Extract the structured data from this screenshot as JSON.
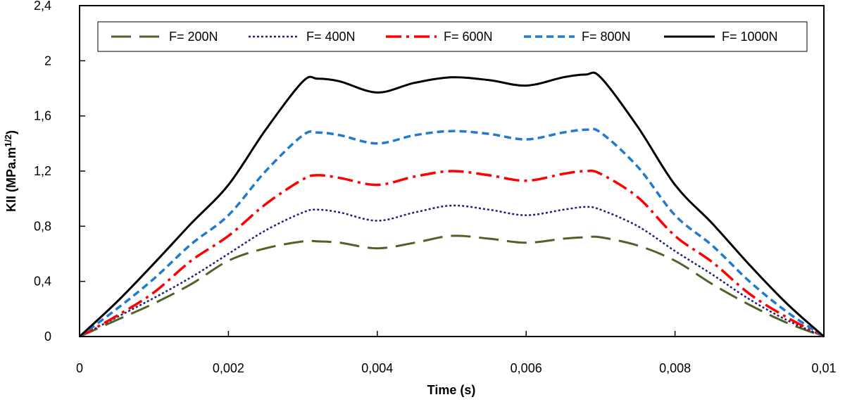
{
  "chart_data": {
    "type": "line",
    "xlabel": "Time (s)",
    "ylabel_main": "KII (MPa.m",
    "ylabel_sup": "1/2",
    "ylabel_close": ")",
    "xlim": [
      0,
      0.01
    ],
    "ylim": [
      0,
      2.4
    ],
    "x_ticks": [
      0,
      0.002,
      0.004,
      0.006,
      0.008,
      0.01
    ],
    "x_tick_labels": [
      "0",
      "0,002",
      "0,004",
      "0,006",
      "0,008",
      "0,01"
    ],
    "y_ticks": [
      0,
      0.4,
      0.8,
      1.2,
      1.6,
      2,
      2.4
    ],
    "y_tick_labels": [
      "0",
      "0,4",
      "0,8",
      "1,2",
      "1,6",
      "2",
      "2,4"
    ],
    "grid": false,
    "legend_position": "top",
    "x": [
      0,
      0.0005,
      0.001,
      0.0015,
      0.002,
      0.0025,
      0.003,
      0.0032,
      0.0035,
      0.004,
      0.0045,
      0.005,
      0.0055,
      0.006,
      0.0065,
      0.0068,
      0.007,
      0.0075,
      0.008,
      0.0085,
      0.009,
      0.0095,
      0.01
    ],
    "series": [
      {
        "name": "F= 200N",
        "color": "#4f6228",
        "dash": "28,12",
        "width": 3,
        "values": [
          0,
          0.12,
          0.24,
          0.38,
          0.55,
          0.64,
          0.69,
          0.69,
          0.68,
          0.64,
          0.68,
          0.73,
          0.71,
          0.68,
          0.71,
          0.72,
          0.72,
          0.66,
          0.55,
          0.38,
          0.23,
          0.1,
          0
        ]
      },
      {
        "name": "F= 400N",
        "color": "#1f1f7a",
        "dash": "3,3",
        "width": 2.5,
        "values": [
          0,
          0.14,
          0.28,
          0.43,
          0.6,
          0.77,
          0.9,
          0.92,
          0.9,
          0.84,
          0.9,
          0.95,
          0.92,
          0.88,
          0.92,
          0.94,
          0.92,
          0.8,
          0.62,
          0.45,
          0.27,
          0.12,
          0
        ]
      },
      {
        "name": "F= 600N",
        "color": "#ff0000",
        "dash": "22,7,4,7",
        "width": 3.5,
        "values": [
          0,
          0.15,
          0.32,
          0.55,
          0.73,
          0.96,
          1.14,
          1.17,
          1.15,
          1.1,
          1.16,
          1.2,
          1.17,
          1.13,
          1.18,
          1.2,
          1.18,
          1.01,
          0.73,
          0.54,
          0.31,
          0.14,
          0
        ]
      },
      {
        "name": "F= 800N",
        "color": "#1f7ad0",
        "dash": "10,6",
        "width": 3.5,
        "values": [
          0,
          0.2,
          0.42,
          0.67,
          0.88,
          1.2,
          1.46,
          1.48,
          1.46,
          1.4,
          1.46,
          1.49,
          1.47,
          1.43,
          1.48,
          1.5,
          1.48,
          1.23,
          0.88,
          0.66,
          0.4,
          0.18,
          0
        ]
      },
      {
        "name": "F= 1000N",
        "color": "#000000",
        "dash": "",
        "width": 3,
        "values": [
          0,
          0.25,
          0.53,
          0.82,
          1.1,
          1.5,
          1.85,
          1.87,
          1.85,
          1.77,
          1.84,
          1.88,
          1.86,
          1.82,
          1.88,
          1.9,
          1.88,
          1.52,
          1.1,
          0.82,
          0.52,
          0.24,
          0
        ]
      }
    ]
  }
}
